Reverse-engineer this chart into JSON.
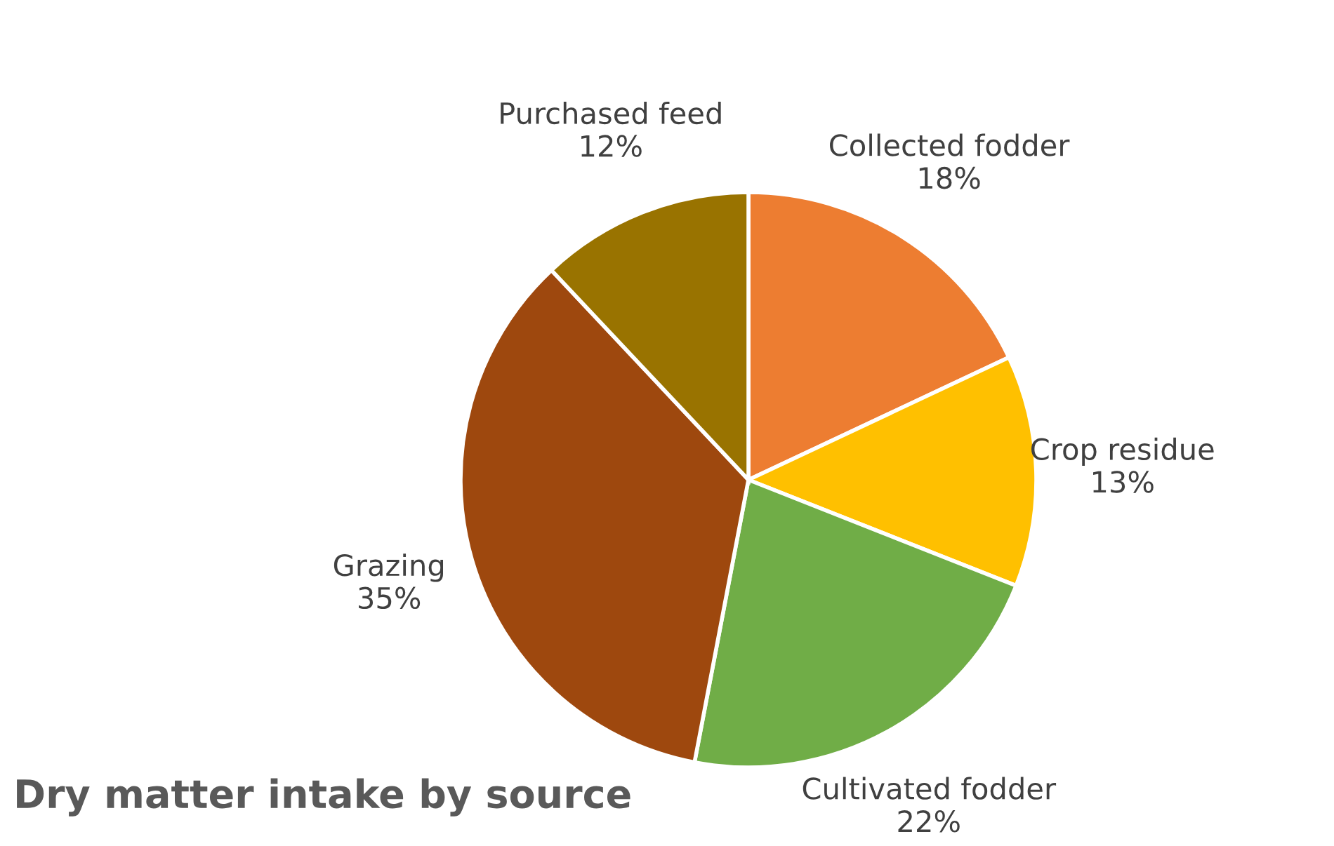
{
  "chart_data": {
    "type": "pie",
    "title": "Dry matter intake by source",
    "categories": [
      "Collected fodder",
      "Crop residue",
      "Cultivated fodder",
      "Grazing",
      "Purchased feed"
    ],
    "values": [
      18,
      13,
      22,
      35,
      12
    ],
    "value_labels": [
      "18%",
      "13%",
      "22%",
      "35%",
      "12%"
    ],
    "colors": [
      "#ed7d31",
      "#ffc000",
      "#70ad47",
      "#9e480e",
      "#997300"
    ],
    "legend": false
  }
}
